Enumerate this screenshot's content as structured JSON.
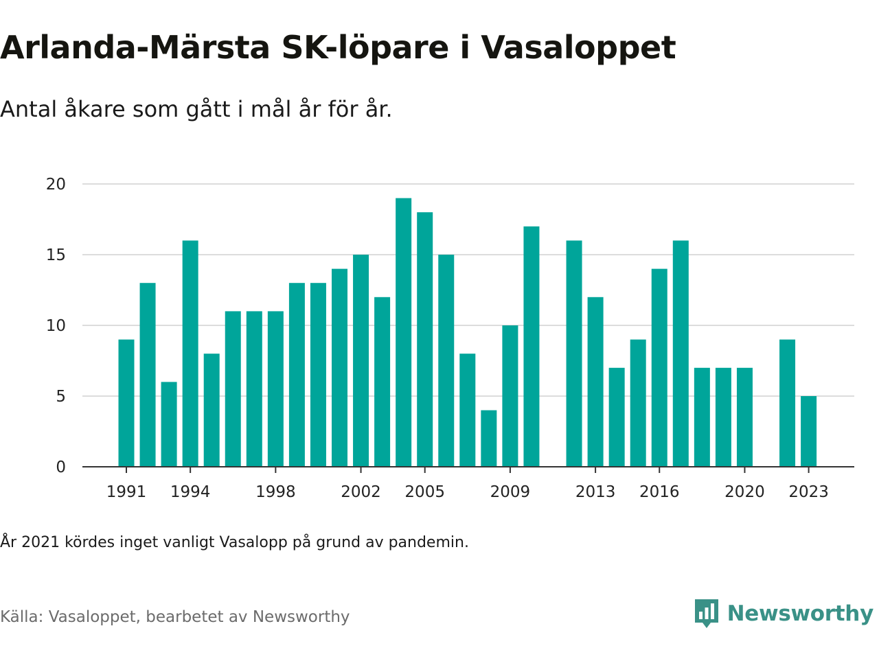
{
  "title": "Arlanda-Märsta SK-löpare i Vasaloppet",
  "subtitle": "Antal åkare som gått i mål år för år.",
  "note": "År 2021 kördes inget vanligt Vasalopp på grund av pandemin.",
  "source": "Källa: Vasaloppet, bearbetet av Newsworthy",
  "brand": {
    "name": "Newsworthy",
    "icon": "newsworthy-logo-icon",
    "color": "#3a9187"
  },
  "colors": {
    "bar": "#00a59a",
    "grid": "#dcdcdc",
    "axis": "#333333"
  },
  "chart_data": {
    "type": "bar",
    "title": "Arlanda-Märsta SK-löpare i Vasaloppet",
    "subtitle": "Antal åkare som gått i mål år för år.",
    "xlabel": "",
    "ylabel": "",
    "ylim": [
      0,
      20
    ],
    "yticks": [
      0,
      5,
      10,
      15,
      20
    ],
    "xticks": [
      1991,
      1994,
      1998,
      2002,
      2005,
      2009,
      2013,
      2016,
      2020,
      2023
    ],
    "grid": true,
    "x": [
      1991,
      1992,
      1993,
      1994,
      1995,
      1996,
      1997,
      1998,
      1999,
      2000,
      2001,
      2002,
      2003,
      2004,
      2005,
      2006,
      2007,
      2008,
      2009,
      2010,
      2011,
      2012,
      2013,
      2014,
      2015,
      2016,
      2017,
      2018,
      2019,
      2020,
      2021,
      2022,
      2023
    ],
    "values": [
      9,
      13,
      6,
      16,
      8,
      11,
      11,
      11,
      13,
      13,
      14,
      15,
      12,
      19,
      18,
      15,
      8,
      4,
      10,
      17,
      null,
      16,
      12,
      7,
      9,
      14,
      16,
      7,
      7,
      7,
      null,
      9,
      5
    ]
  }
}
